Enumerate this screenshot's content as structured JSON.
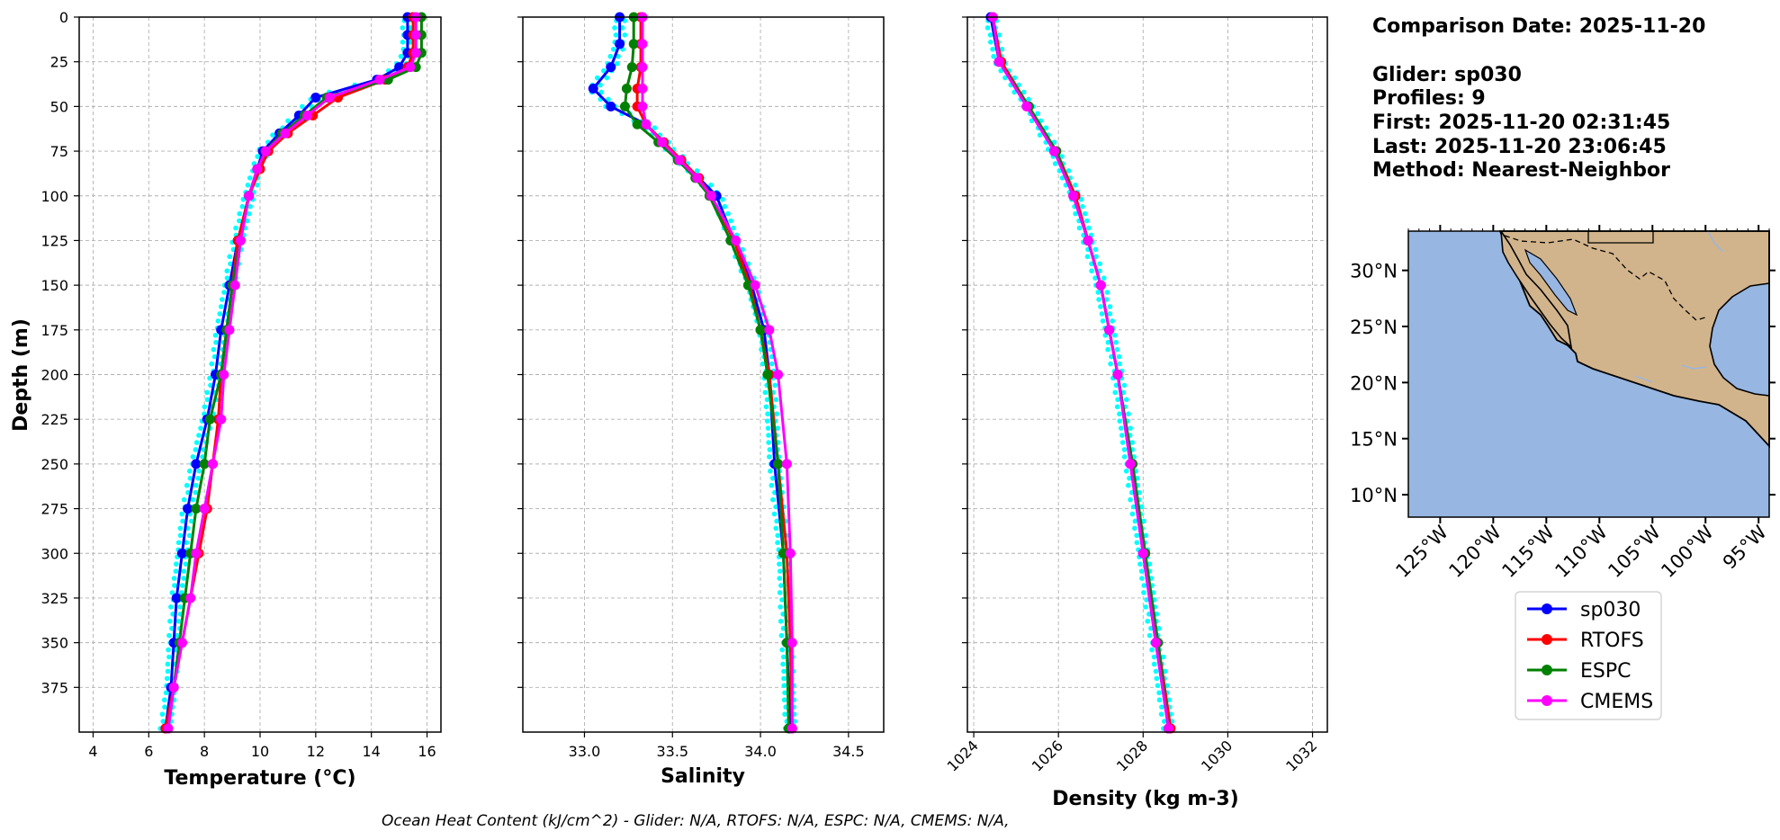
{
  "info": {
    "comparison_date": "Comparison Date: 2025-11-20",
    "glider": "Glider: sp030",
    "profiles": "Profiles: 9",
    "first": "First: 2025-11-20 02:31:45",
    "last": "Last: 2025-11-20 23:06:45",
    "method": "Method: Nearest-Neighbor"
  },
  "footer": "Ocean Heat Content (kJ/cm^2) - Glider: N/A,  RTOFS: N/A,  ESPC: N/A,  CMEMS: N/A,",
  "colors": {
    "sp030": "#0000ff",
    "RTOFS": "#ff0000",
    "ESPC": "#008000",
    "CMEMS": "#ff00ff",
    "raw": "#00ffff",
    "ocean": "#97b6e1",
    "land": "#d2b48c"
  },
  "chart_data": [
    {
      "type": "line",
      "panel": "temperature",
      "xlabel": "Temperature (°C)",
      "ylabel": "Depth (m)",
      "xlim": [
        3.5,
        16.5
      ],
      "ylim": [
        400,
        0
      ],
      "xticks": [
        4,
        6,
        8,
        10,
        12,
        14,
        16
      ],
      "yticks": [
        0,
        25,
        50,
        75,
        100,
        125,
        150,
        175,
        200,
        225,
        250,
        275,
        300,
        325,
        350,
        375
      ],
      "grid": true,
      "series": [
        {
          "name": "sp030",
          "depth": [
            0,
            10,
            20,
            28,
            35,
            45,
            55,
            65,
            75,
            85,
            100,
            125,
            150,
            175,
            200,
            225,
            250,
            275,
            300,
            325,
            350,
            375,
            398
          ],
          "values": [
            15.3,
            15.3,
            15.3,
            15.0,
            14.2,
            12.0,
            11.4,
            10.7,
            10.1,
            9.9,
            9.6,
            9.2,
            8.9,
            8.6,
            8.4,
            8.1,
            7.7,
            7.4,
            7.2,
            7.0,
            6.9,
            6.8,
            6.6
          ]
        },
        {
          "name": "RTOFS",
          "depth": [
            0,
            10,
            20,
            28,
            35,
            45,
            55,
            65,
            75,
            85,
            100,
            125,
            150,
            175,
            200,
            225,
            250,
            275,
            300,
            325,
            350,
            375,
            398
          ],
          "values": [
            15.5,
            15.5,
            15.5,
            15.3,
            14.5,
            12.8,
            11.9,
            11.0,
            10.3,
            10.0,
            9.6,
            9.2,
            9.0,
            8.8,
            8.6,
            8.5,
            8.3,
            8.1,
            7.8,
            7.5,
            7.2,
            6.9,
            6.6
          ]
        },
        {
          "name": "ESPC",
          "depth": [
            0,
            10,
            20,
            28,
            35,
            45,
            55,
            65,
            75,
            85,
            100,
            125,
            150,
            175,
            200,
            225,
            250,
            275,
            300,
            325,
            350,
            375,
            398
          ],
          "values": [
            15.8,
            15.8,
            15.8,
            15.6,
            14.6,
            12.4,
            11.6,
            10.8,
            10.2,
            9.9,
            9.6,
            9.3,
            9.0,
            8.8,
            8.6,
            8.2,
            8.0,
            7.7,
            7.5,
            7.3,
            7.1,
            6.9,
            6.7
          ]
        },
        {
          "name": "CMEMS",
          "depth": [
            0,
            10,
            20,
            28,
            35,
            45,
            55,
            65,
            75,
            85,
            100,
            125,
            150,
            175,
            200,
            225,
            250,
            275,
            300,
            325,
            350,
            375,
            398
          ],
          "values": [
            15.6,
            15.6,
            15.6,
            15.4,
            14.3,
            12.5,
            11.7,
            10.9,
            10.2,
            9.9,
            9.6,
            9.3,
            9.1,
            8.9,
            8.7,
            8.6,
            8.3,
            8.0,
            7.7,
            7.5,
            7.2,
            6.9,
            6.7
          ]
        }
      ]
    },
    {
      "type": "line",
      "panel": "salinity",
      "xlabel": "Salinity",
      "xlim": [
        32.65,
        34.7
      ],
      "ylim": [
        400,
        0
      ],
      "xticks": [
        33.0,
        33.5,
        34.0,
        34.5
      ],
      "tick_labels": [
        "33.0",
        "33.5",
        "34.0",
        "34.5"
      ],
      "grid": true,
      "series": [
        {
          "name": "sp030",
          "depth": [
            0,
            15,
            28,
            40,
            50,
            60,
            70,
            80,
            90,
            100,
            125,
            150,
            175,
            200,
            250,
            300,
            350,
            398
          ],
          "values": [
            33.2,
            33.2,
            33.15,
            33.05,
            33.15,
            33.35,
            33.45,
            33.55,
            33.65,
            33.75,
            33.85,
            33.95,
            34.02,
            34.05,
            34.08,
            34.13,
            34.15,
            34.17
          ]
        },
        {
          "name": "RTOFS",
          "depth": [
            0,
            15,
            28,
            40,
            50,
            60,
            70,
            80,
            90,
            100,
            125,
            150,
            175,
            200,
            250,
            300,
            350,
            398
          ],
          "values": [
            33.32,
            33.32,
            33.32,
            33.3,
            33.3,
            33.35,
            33.45,
            33.55,
            33.65,
            33.72,
            33.85,
            33.94,
            34.0,
            34.05,
            34.1,
            34.15,
            34.17,
            34.18
          ]
        },
        {
          "name": "ESPC",
          "depth": [
            0,
            15,
            28,
            40,
            50,
            60,
            70,
            80,
            90,
            100,
            125,
            150,
            175,
            200,
            250,
            300,
            350,
            398
          ],
          "values": [
            33.28,
            33.28,
            33.27,
            33.24,
            33.23,
            33.3,
            33.42,
            33.53,
            33.63,
            33.71,
            33.83,
            33.93,
            34.0,
            34.04,
            34.1,
            34.13,
            34.15,
            34.16
          ]
        },
        {
          "name": "CMEMS",
          "depth": [
            0,
            15,
            28,
            40,
            50,
            60,
            70,
            80,
            90,
            100,
            125,
            150,
            175,
            200,
            250,
            300,
            350,
            398
          ],
          "values": [
            33.33,
            33.33,
            33.33,
            33.33,
            33.33,
            33.35,
            33.44,
            33.54,
            33.64,
            33.72,
            33.86,
            33.97,
            34.05,
            34.1,
            34.15,
            34.17,
            34.18,
            34.18
          ]
        }
      ]
    },
    {
      "type": "line",
      "panel": "density",
      "xlabel": "Density (kg m-3)",
      "xlim": [
        1023.85,
        1032.35
      ],
      "ylim": [
        400,
        0
      ],
      "xticks": [
        1024,
        1026,
        1028,
        1030,
        1032
      ],
      "grid": true,
      "series": [
        {
          "name": "sp030",
          "depth": [
            0,
            25,
            50,
            75,
            100,
            125,
            150,
            175,
            200,
            250,
            300,
            350,
            398
          ],
          "values": [
            1024.4,
            1024.6,
            1025.3,
            1025.9,
            1026.4,
            1026.7,
            1027.0,
            1027.2,
            1027.4,
            1027.7,
            1028.0,
            1028.3,
            1028.6
          ]
        },
        {
          "name": "RTOFS",
          "depth": [
            0,
            25,
            50,
            75,
            100,
            125,
            150,
            175,
            200,
            250,
            300,
            350,
            398
          ],
          "values": [
            1024.45,
            1024.65,
            1025.3,
            1025.95,
            1026.4,
            1026.7,
            1027.0,
            1027.2,
            1027.4,
            1027.75,
            1028.05,
            1028.35,
            1028.65
          ]
        },
        {
          "name": "ESPC",
          "depth": [
            0,
            25,
            50,
            75,
            100,
            125,
            150,
            175,
            200,
            250,
            300,
            350,
            398
          ],
          "values": [
            1024.45,
            1024.6,
            1025.3,
            1025.95,
            1026.35,
            1026.7,
            1027.0,
            1027.2,
            1027.4,
            1027.75,
            1028.05,
            1028.35,
            1028.6
          ]
        },
        {
          "name": "CMEMS",
          "depth": [
            0,
            25,
            50,
            75,
            100,
            125,
            150,
            175,
            200,
            250,
            300,
            350,
            398
          ],
          "values": [
            1024.45,
            1024.6,
            1025.25,
            1025.9,
            1026.35,
            1026.7,
            1027.0,
            1027.2,
            1027.4,
            1027.7,
            1028.0,
            1028.3,
            1028.6
          ]
        }
      ]
    }
  ],
  "map": {
    "lat_ticks": [
      "30°N",
      "25°N",
      "20°N",
      "15°N",
      "10°N"
    ],
    "lon_ticks": [
      "125°W",
      "120°W",
      "115°W",
      "110°W",
      "105°W",
      "100°W",
      "95°W"
    ],
    "extent": {
      "lon": [
        -128,
        -94
      ],
      "lat": [
        8,
        33.5
      ]
    }
  },
  "legend": {
    "placement": "below-map",
    "entries": [
      "sp030",
      "RTOFS",
      "ESPC",
      "CMEMS"
    ]
  }
}
